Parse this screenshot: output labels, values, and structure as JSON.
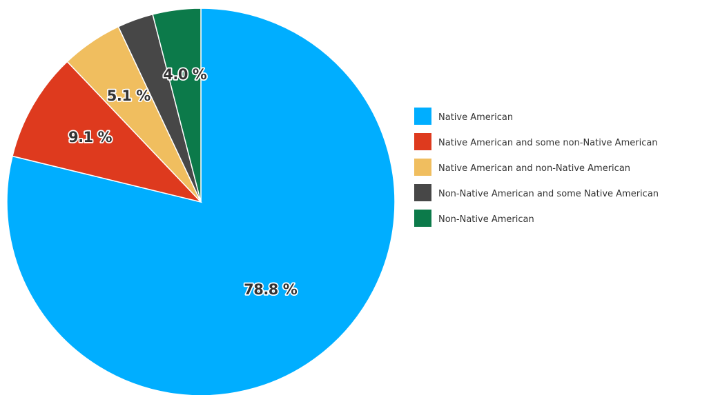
{
  "chart_data": {
    "type": "pie",
    "categories": [
      "Native American",
      "Native American and some non-Native American",
      "Native American and non-Native American",
      "Non-Native American and some Native American",
      "Non-Native American"
    ],
    "values": [
      78.8,
      9.1,
      5.1,
      3.0,
      4.0
    ],
    "data_labels": [
      "78.8 %",
      "9.1 %",
      "5.1 %",
      "",
      "4.0 %"
    ],
    "colors": [
      "#00AEFF",
      "#DE3A1E",
      "#F0BE5F",
      "#474747",
      "#0C7A4A"
    ],
    "legend_position": "right",
    "start_angle": "12 o'clock",
    "direction": "clockwise"
  }
}
